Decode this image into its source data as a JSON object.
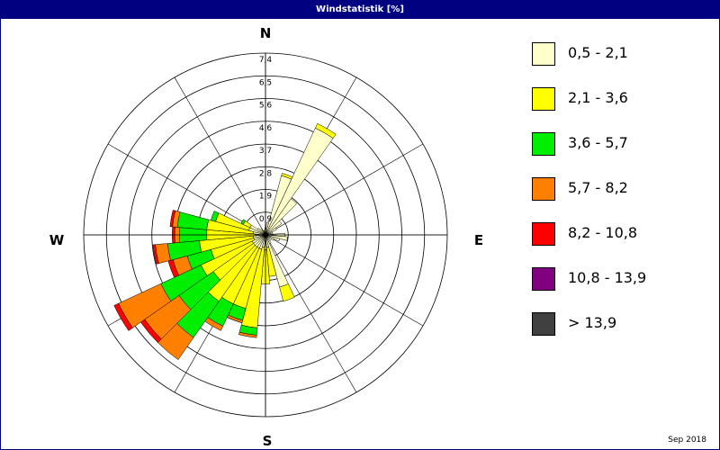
{
  "window": {
    "title": "Windstatistik [%]",
    "footnote": "Sep 2018"
  },
  "chart_data": {
    "type": "wind-rose",
    "title": "Windstatistik [%]",
    "unit": "%",
    "directions": [
      "N",
      "E",
      "S",
      "W"
    ],
    "radial_ticks": [
      "0,9",
      "1,9",
      "2,8",
      "3,7",
      "4,6",
      "5,6",
      "6,5",
      "7,4"
    ],
    "radial_max": 7.4,
    "speed_classes": [
      {
        "label": "0,5 - 2,1",
        "color": "#ffffcc"
      },
      {
        "label": "2,1 - 3,6",
        "color": "#ffff00"
      },
      {
        "label": "3,6 - 5,7",
        "color": "#00ee00"
      },
      {
        "label": "5,7 - 8,2",
        "color": "#ff8000"
      },
      {
        "label": "8,2 - 10,8",
        "color": "#ff0000"
      },
      {
        "label": "10,8 - 13,9",
        "color": "#800080"
      },
      {
        "label": "> 13,9",
        "color": "#404040"
      }
    ],
    "sector_width_deg": 10,
    "sectors": [
      {
        "angle": 0,
        "values": [
          0.3,
          0,
          0,
          0,
          0,
          0,
          0
        ]
      },
      {
        "angle": 10,
        "values": [
          0.5,
          0,
          0,
          0,
          0,
          0,
          0
        ]
      },
      {
        "angle": 20,
        "values": [
          2.5,
          0.1,
          0,
          0,
          0,
          0,
          0
        ]
      },
      {
        "angle": 30,
        "values": [
          4.8,
          0.2,
          0,
          0,
          0,
          0,
          0
        ]
      },
      {
        "angle": 40,
        "values": [
          1.8,
          0,
          0,
          0,
          0,
          0,
          0
        ]
      },
      {
        "angle": 50,
        "values": [
          0.8,
          0,
          0,
          0,
          0,
          0,
          0
        ]
      },
      {
        "angle": 60,
        "values": [
          0.5,
          0,
          0,
          0,
          0,
          0,
          0
        ]
      },
      {
        "angle": 70,
        "values": [
          0.3,
          0,
          0,
          0,
          0,
          0,
          0
        ]
      },
      {
        "angle": 80,
        "values": [
          0.3,
          0,
          0,
          0,
          0,
          0,
          0
        ]
      },
      {
        "angle": 90,
        "values": [
          0.8,
          0,
          0,
          0,
          0,
          0,
          0
        ]
      },
      {
        "angle": 100,
        "values": [
          0.9,
          0,
          0,
          0,
          0,
          0,
          0
        ]
      },
      {
        "angle": 110,
        "values": [
          0.6,
          0,
          0,
          0,
          0,
          0,
          0
        ]
      },
      {
        "angle": 120,
        "values": [
          0.4,
          0,
          0,
          0,
          0,
          0,
          0
        ]
      },
      {
        "angle": 130,
        "values": [
          0.3,
          0,
          0,
          0,
          0,
          0,
          0
        ]
      },
      {
        "angle": 140,
        "values": [
          0.3,
          0,
          0,
          0,
          0,
          0,
          0
        ]
      },
      {
        "angle": 150,
        "values": [
          0.4,
          0,
          0,
          0,
          0,
          0,
          0
        ]
      },
      {
        "angle": 160,
        "values": [
          2.2,
          0.6,
          0,
          0,
          0,
          0,
          0
        ]
      },
      {
        "angle": 170,
        "values": [
          0.5,
          1.2,
          0,
          0,
          0,
          0,
          0
        ]
      },
      {
        "angle": 180,
        "values": [
          0.6,
          1.4,
          0,
          0,
          0,
          0,
          0
        ]
      },
      {
        "angle": 190,
        "values": [
          0.5,
          3.3,
          0.3,
          0.1,
          0,
          0,
          0
        ]
      },
      {
        "angle": 200,
        "values": [
          0.6,
          2.5,
          0.5,
          0.1,
          0,
          0,
          0
        ]
      },
      {
        "angle": 210,
        "values": [
          0.6,
          2.5,
          1.0,
          0.2,
          0,
          0,
          0
        ]
      },
      {
        "angle": 220,
        "values": [
          0.6,
          2.7,
          1.8,
          1.1,
          0,
          0,
          0
        ]
      },
      {
        "angle": 230,
        "values": [
          0.6,
          2.0,
          1.7,
          1.7,
          0.2,
          0,
          0
        ]
      },
      {
        "angle": 240,
        "values": [
          0.6,
          2.3,
          1.8,
          1.9,
          0.2,
          0,
          0
        ]
      },
      {
        "angle": 250,
        "values": [
          0.5,
          1.8,
          1.0,
          0.6,
          0.2,
          0,
          0
        ]
      },
      {
        "angle": 260,
        "values": [
          0.5,
          2.2,
          1.3,
          0.5,
          0.1,
          0,
          0
        ]
      },
      {
        "angle": 270,
        "values": [
          0.4,
          2.0,
          1.1,
          0.2,
          0.1,
          0,
          0
        ]
      },
      {
        "angle": 280,
        "values": [
          0.5,
          1.9,
          1.2,
          0.2,
          0.1,
          0,
          0
        ]
      },
      {
        "angle": 290,
        "values": [
          0.7,
          1.4,
          0.2,
          0,
          0,
          0,
          0
        ]
      },
      {
        "angle": 300,
        "values": [
          0.7,
          0.3,
          0.1,
          0,
          0,
          0,
          0
        ]
      },
      {
        "angle": 310,
        "values": [
          0.4,
          0,
          0,
          0,
          0,
          0,
          0
        ]
      },
      {
        "angle": 320,
        "values": [
          0.3,
          0,
          0,
          0,
          0,
          0,
          0
        ]
      },
      {
        "angle": 330,
        "values": [
          0.2,
          0,
          0,
          0,
          0,
          0,
          0
        ]
      },
      {
        "angle": 340,
        "values": [
          0.2,
          0,
          0,
          0,
          0,
          0,
          0
        ]
      },
      {
        "angle": 350,
        "values": [
          0.2,
          0,
          0,
          0,
          0,
          0,
          0
        ]
      }
    ]
  }
}
